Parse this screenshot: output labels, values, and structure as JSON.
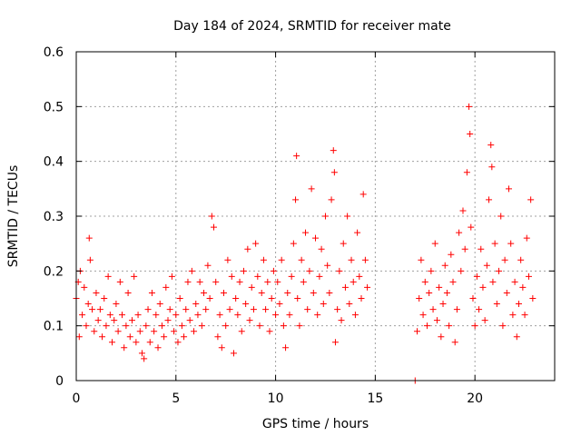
{
  "chart_data": {
    "type": "scatter",
    "title": "Day 184 of 2024, SRMTID for receiver mate",
    "xlabel": "GPS time / hours",
    "ylabel": "SRMTID / TECUs",
    "xlim": [
      0,
      24
    ],
    "ylim": [
      0,
      0.6
    ],
    "xticks": [
      0,
      5,
      10,
      15,
      20
    ],
    "yticks": [
      0,
      0.1,
      0.2,
      0.3,
      0.4,
      0.5,
      0.6
    ],
    "xtick_labels": [
      "0",
      "5",
      "10",
      "15",
      "20"
    ],
    "ytick_labels": [
      "0",
      "0.1",
      "0.2",
      "0.3",
      "0.4",
      "0.5",
      "0.6"
    ],
    "grid": true,
    "legend": "none",
    "marker": "+",
    "color": "#ff0000",
    "series": [
      {
        "name": "SRMTID",
        "points": [
          [
            0.0,
            0.15
          ],
          [
            0.1,
            0.18
          ],
          [
            0.15,
            0.08
          ],
          [
            0.2,
            0.2
          ],
          [
            0.3,
            0.12
          ],
          [
            0.4,
            0.17
          ],
          [
            0.5,
            0.1
          ],
          [
            0.6,
            0.14
          ],
          [
            0.65,
            0.26
          ],
          [
            0.7,
            0.22
          ],
          [
            0.8,
            0.13
          ],
          [
            0.9,
            0.09
          ],
          [
            1.0,
            0.16
          ],
          [
            1.1,
            0.11
          ],
          [
            1.2,
            0.13
          ],
          [
            1.3,
            0.08
          ],
          [
            1.4,
            0.15
          ],
          [
            1.5,
            0.1
          ],
          [
            1.6,
            0.19
          ],
          [
            1.7,
            0.12
          ],
          [
            1.8,
            0.07
          ],
          [
            1.9,
            0.11
          ],
          [
            2.0,
            0.14
          ],
          [
            2.1,
            0.09
          ],
          [
            2.2,
            0.18
          ],
          [
            2.3,
            0.12
          ],
          [
            2.4,
            0.06
          ],
          [
            2.5,
            0.1
          ],
          [
            2.6,
            0.16
          ],
          [
            2.7,
            0.08
          ],
          [
            2.8,
            0.11
          ],
          [
            2.9,
            0.19
          ],
          [
            3.0,
            0.07
          ],
          [
            3.1,
            0.12
          ],
          [
            3.2,
            0.09
          ],
          [
            3.3,
            0.05
          ],
          [
            3.4,
            0.04
          ],
          [
            3.5,
            0.1
          ],
          [
            3.6,
            0.13
          ],
          [
            3.7,
            0.07
          ],
          [
            3.8,
            0.16
          ],
          [
            3.9,
            0.09
          ],
          [
            4.0,
            0.12
          ],
          [
            4.1,
            0.06
          ],
          [
            4.2,
            0.14
          ],
          [
            4.3,
            0.1
          ],
          [
            4.4,
            0.08
          ],
          [
            4.5,
            0.17
          ],
          [
            4.6,
            0.11
          ],
          [
            4.7,
            0.13
          ],
          [
            4.8,
            0.19
          ],
          [
            4.9,
            0.09
          ],
          [
            5.0,
            0.12
          ],
          [
            5.1,
            0.07
          ],
          [
            5.2,
            0.15
          ],
          [
            5.3,
            0.1
          ],
          [
            5.4,
            0.08
          ],
          [
            5.5,
            0.13
          ],
          [
            5.6,
            0.18
          ],
          [
            5.7,
            0.11
          ],
          [
            5.8,
            0.2
          ],
          [
            5.9,
            0.09
          ],
          [
            6.0,
            0.14
          ],
          [
            6.1,
            0.12
          ],
          [
            6.2,
            0.18
          ],
          [
            6.3,
            0.1
          ],
          [
            6.4,
            0.16
          ],
          [
            6.5,
            0.13
          ],
          [
            6.6,
            0.21
          ],
          [
            6.7,
            0.15
          ],
          [
            6.8,
            0.3
          ],
          [
            6.9,
            0.28
          ],
          [
            7.0,
            0.18
          ],
          [
            7.1,
            0.08
          ],
          [
            7.2,
            0.12
          ],
          [
            7.3,
            0.06
          ],
          [
            7.4,
            0.16
          ],
          [
            7.5,
            0.1
          ],
          [
            7.6,
            0.22
          ],
          [
            7.7,
            0.13
          ],
          [
            7.8,
            0.19
          ],
          [
            7.9,
            0.05
          ],
          [
            8.0,
            0.15
          ],
          [
            8.1,
            0.12
          ],
          [
            8.2,
            0.18
          ],
          [
            8.3,
            0.09
          ],
          [
            8.4,
            0.2
          ],
          [
            8.5,
            0.14
          ],
          [
            8.6,
            0.24
          ],
          [
            8.7,
            0.11
          ],
          [
            8.8,
            0.17
          ],
          [
            8.9,
            0.13
          ],
          [
            9.0,
            0.25
          ],
          [
            9.1,
            0.19
          ],
          [
            9.2,
            0.1
          ],
          [
            9.3,
            0.16
          ],
          [
            9.4,
            0.22
          ],
          [
            9.5,
            0.13
          ],
          [
            9.6,
            0.18
          ],
          [
            9.7,
            0.09
          ],
          [
            9.8,
            0.15
          ],
          [
            9.9,
            0.2
          ],
          [
            10.0,
            0.12
          ],
          [
            10.1,
            0.18
          ],
          [
            10.2,
            0.14
          ],
          [
            10.3,
            0.22
          ],
          [
            10.4,
            0.1
          ],
          [
            10.5,
            0.06
          ],
          [
            10.6,
            0.16
          ],
          [
            10.7,
            0.12
          ],
          [
            10.8,
            0.19
          ],
          [
            10.9,
            0.25
          ],
          [
            11.0,
            0.33
          ],
          [
            11.05,
            0.41
          ],
          [
            11.1,
            0.15
          ],
          [
            11.2,
            0.1
          ],
          [
            11.3,
            0.22
          ],
          [
            11.4,
            0.18
          ],
          [
            11.5,
            0.27
          ],
          [
            11.6,
            0.13
          ],
          [
            11.7,
            0.2
          ],
          [
            11.8,
            0.35
          ],
          [
            11.9,
            0.16
          ],
          [
            12.0,
            0.26
          ],
          [
            12.1,
            0.12
          ],
          [
            12.2,
            0.19
          ],
          [
            12.3,
            0.24
          ],
          [
            12.4,
            0.14
          ],
          [
            12.5,
            0.3
          ],
          [
            12.6,
            0.21
          ],
          [
            12.7,
            0.16
          ],
          [
            12.8,
            0.33
          ],
          [
            12.9,
            0.42
          ],
          [
            12.95,
            0.38
          ],
          [
            13.0,
            0.07
          ],
          [
            13.1,
            0.13
          ],
          [
            13.2,
            0.2
          ],
          [
            13.3,
            0.11
          ],
          [
            13.4,
            0.25
          ],
          [
            13.5,
            0.17
          ],
          [
            13.6,
            0.3
          ],
          [
            13.7,
            0.14
          ],
          [
            13.8,
            0.22
          ],
          [
            13.9,
            0.18
          ],
          [
            14.0,
            0.12
          ],
          [
            14.1,
            0.27
          ],
          [
            14.2,
            0.19
          ],
          [
            14.3,
            0.15
          ],
          [
            14.4,
            0.34
          ],
          [
            14.5,
            0.22
          ],
          [
            14.6,
            0.17
          ],
          [
            17.0,
            0.0
          ],
          [
            17.1,
            0.09
          ],
          [
            17.2,
            0.15
          ],
          [
            17.3,
            0.22
          ],
          [
            17.4,
            0.12
          ],
          [
            17.5,
            0.18
          ],
          [
            17.6,
            0.1
          ],
          [
            17.7,
            0.16
          ],
          [
            17.8,
            0.2
          ],
          [
            17.9,
            0.13
          ],
          [
            18.0,
            0.25
          ],
          [
            18.1,
            0.11
          ],
          [
            18.2,
            0.17
          ],
          [
            18.3,
            0.08
          ],
          [
            18.4,
            0.14
          ],
          [
            18.5,
            0.21
          ],
          [
            18.6,
            0.16
          ],
          [
            18.7,
            0.1
          ],
          [
            18.8,
            0.23
          ],
          [
            18.9,
            0.18
          ],
          [
            19.0,
            0.07
          ],
          [
            19.1,
            0.13
          ],
          [
            19.2,
            0.27
          ],
          [
            19.3,
            0.2
          ],
          [
            19.4,
            0.31
          ],
          [
            19.5,
            0.24
          ],
          [
            19.6,
            0.38
          ],
          [
            19.7,
            0.5
          ],
          [
            19.75,
            0.45
          ],
          [
            19.8,
            0.28
          ],
          [
            19.9,
            0.15
          ],
          [
            20.0,
            0.1
          ],
          [
            20.1,
            0.19
          ],
          [
            20.2,
            0.13
          ],
          [
            20.3,
            0.24
          ],
          [
            20.4,
            0.17
          ],
          [
            20.5,
            0.11
          ],
          [
            20.6,
            0.21
          ],
          [
            20.7,
            0.33
          ],
          [
            20.8,
            0.43
          ],
          [
            20.85,
            0.39
          ],
          [
            20.9,
            0.18
          ],
          [
            21.0,
            0.25
          ],
          [
            21.1,
            0.14
          ],
          [
            21.2,
            0.2
          ],
          [
            21.3,
            0.3
          ],
          [
            21.4,
            0.1
          ],
          [
            21.5,
            0.22
          ],
          [
            21.6,
            0.16
          ],
          [
            21.7,
            0.35
          ],
          [
            21.8,
            0.25
          ],
          [
            21.9,
            0.12
          ],
          [
            22.0,
            0.18
          ],
          [
            22.1,
            0.08
          ],
          [
            22.2,
            0.14
          ],
          [
            22.3,
            0.22
          ],
          [
            22.4,
            0.17
          ],
          [
            22.5,
            0.12
          ],
          [
            22.6,
            0.26
          ],
          [
            22.7,
            0.19
          ],
          [
            22.8,
            0.33
          ],
          [
            22.9,
            0.15
          ]
        ]
      }
    ]
  }
}
